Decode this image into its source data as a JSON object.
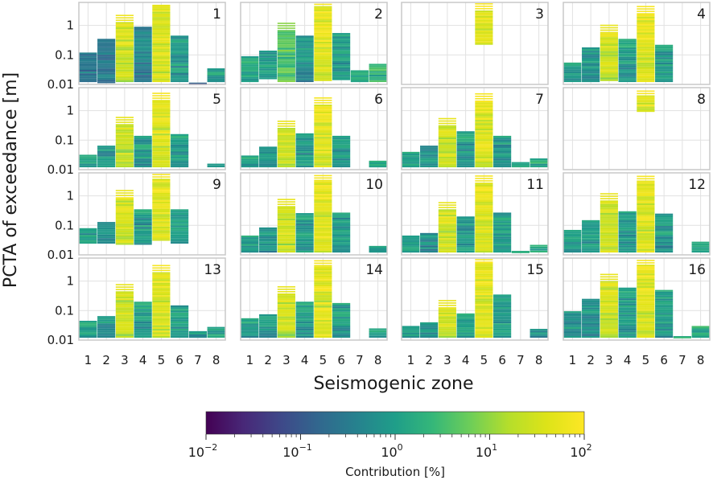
{
  "chart_data": {
    "type": "bar",
    "title": "",
    "ylabel": "PCTA of exceedance [m]",
    "xlabel": "Seismogenic zone",
    "categories": [
      "1",
      "2",
      "3",
      "4",
      "5",
      "6",
      "7",
      "8"
    ],
    "y_scale": "log",
    "ylim": [
      0.01,
      6
    ],
    "y_ticks": [
      0.01,
      0.1,
      1
    ],
    "y_tick_labels": [
      "0.01",
      "0.1",
      "1"
    ],
    "grid": true,
    "panels": [
      {
        "id": "1",
        "label": "1",
        "zones": [
          [
            0.012,
            0.12
          ],
          [
            0.011,
            0.35
          ],
          [
            0.012,
            1.3
          ],
          [
            0.012,
            0.9
          ],
          [
            0.012,
            5.0
          ],
          [
            0.012,
            0.45
          ],
          [
            0.01,
            0.011
          ],
          [
            0.012,
            0.035
          ]
        ],
        "peaks": [
          0.6,
          0.6,
          75,
          0.8,
          80,
          2,
          0.3,
          3
        ]
      },
      {
        "id": "2",
        "label": "2",
        "zones": [
          [
            0.012,
            0.09
          ],
          [
            0.015,
            0.14
          ],
          [
            0.012,
            0.7
          ],
          [
            0.012,
            0.45
          ],
          [
            0.013,
            4.5
          ],
          [
            0.014,
            0.55
          ],
          [
            0.012,
            0.03
          ],
          [
            0.012,
            0.05
          ]
        ],
        "peaks": [
          3,
          2,
          10,
          1.5,
          95,
          2,
          3,
          5
        ]
      },
      {
        "id": "3",
        "label": "3",
        "zones": [
          null,
          null,
          null,
          null,
          [
            0.22,
            3.2
          ],
          null,
          null,
          null
        ],
        "peaks": [
          0,
          0,
          0,
          0,
          98,
          0,
          0,
          0
        ]
      },
      {
        "id": "4",
        "label": "4",
        "zones": [
          [
            0.012,
            0.055
          ],
          [
            0.012,
            0.18
          ],
          [
            0.013,
            0.6
          ],
          [
            0.012,
            0.35
          ],
          [
            0.012,
            2.6
          ],
          [
            0.012,
            0.22
          ],
          null,
          null
        ],
        "peaks": [
          2,
          1.5,
          60,
          2,
          90,
          2,
          0,
          0
        ]
      },
      {
        "id": "5",
        "label": "5",
        "zones": [
          [
            0.012,
            0.032
          ],
          [
            0.012,
            0.065
          ],
          [
            0.012,
            0.35
          ],
          [
            0.012,
            0.14
          ],
          [
            0.012,
            2.3
          ],
          [
            0.012,
            0.16
          ],
          null,
          [
            0.012,
            0.016
          ]
        ],
        "peaks": [
          2,
          1.5,
          60,
          2,
          90,
          2,
          0,
          2
        ]
      },
      {
        "id": "6",
        "label": "6",
        "zones": [
          [
            0.012,
            0.03
          ],
          [
            0.012,
            0.06
          ],
          [
            0.012,
            0.26
          ],
          [
            0.012,
            0.17
          ],
          [
            0.012,
            1.6
          ],
          [
            0.012,
            0.14
          ],
          null,
          [
            0.012,
            0.02
          ]
        ],
        "peaks": [
          2,
          1.5,
          60,
          2,
          90,
          2,
          0,
          2
        ]
      },
      {
        "id": "7",
        "label": "7",
        "zones": [
          [
            0.012,
            0.04
          ],
          [
            0.012,
            0.065
          ],
          [
            0.012,
            0.32
          ],
          [
            0.012,
            0.2
          ],
          [
            0.012,
            2.2
          ],
          [
            0.012,
            0.14
          ],
          [
            0.012,
            0.018
          ],
          [
            0.012,
            0.024
          ]
        ],
        "peaks": [
          2,
          1.5,
          60,
          2,
          90,
          2,
          3,
          3
        ]
      },
      {
        "id": "8",
        "label": "8",
        "zones": [
          null,
          null,
          null,
          null,
          [
            0.9,
            3.3
          ],
          null,
          null,
          null
        ],
        "peaks": [
          0,
          0,
          0,
          0,
          98,
          0,
          0,
          0
        ]
      },
      {
        "id": "9",
        "label": "9",
        "zones": [
          [
            0.024,
            0.08
          ],
          [
            0.024,
            0.13
          ],
          [
            0.022,
            0.9
          ],
          [
            0.022,
            0.35
          ],
          [
            0.03,
            3.8
          ],
          [
            0.024,
            0.35
          ],
          null,
          null
        ],
        "peaks": [
          2,
          1.5,
          60,
          2,
          90,
          2,
          0,
          0
        ]
      },
      {
        "id": "10",
        "label": "10",
        "zones": [
          [
            0.012,
            0.045
          ],
          [
            0.012,
            0.085
          ],
          [
            0.012,
            0.45
          ],
          [
            0.012,
            0.26
          ],
          [
            0.012,
            3.5
          ],
          [
            0.012,
            0.27
          ],
          null,
          [
            0.012,
            0.02
          ]
        ],
        "peaks": [
          2,
          1.5,
          60,
          2,
          90,
          2,
          0,
          2
        ]
      },
      {
        "id": "11",
        "label": "11",
        "zones": [
          [
            0.012,
            0.045
          ],
          [
            0.012,
            0.055
          ],
          [
            0.012,
            0.35
          ],
          [
            0.012,
            0.2
          ],
          [
            0.012,
            2.8
          ],
          [
            0.012,
            0.27
          ],
          [
            0.012,
            0.013
          ],
          [
            0.012,
            0.022
          ]
        ],
        "peaks": [
          2,
          1.5,
          60,
          2,
          90,
          2,
          3,
          3
        ]
      },
      {
        "id": "12",
        "label": "12",
        "zones": [
          [
            0.012,
            0.07
          ],
          [
            0.012,
            0.15
          ],
          [
            0.012,
            0.7
          ],
          [
            0.012,
            0.3
          ],
          [
            0.012,
            3.3
          ],
          [
            0.012,
            0.25
          ],
          null,
          [
            0.012,
            0.028
          ]
        ],
        "peaks": [
          2,
          1.5,
          60,
          2,
          90,
          2,
          0,
          2
        ]
      },
      {
        "id": "13",
        "label": "13",
        "zones": [
          [
            0.012,
            0.045
          ],
          [
            0.012,
            0.065
          ],
          [
            0.012,
            0.45
          ],
          [
            0.012,
            0.2
          ],
          [
            0.012,
            2.0
          ],
          [
            0.012,
            0.15
          ],
          [
            0.012,
            0.02
          ],
          [
            0.012,
            0.028
          ]
        ],
        "peaks": [
          2,
          1.5,
          60,
          2,
          90,
          2,
          2,
          2
        ]
      },
      {
        "id": "14",
        "label": "14",
        "zones": [
          [
            0.012,
            0.055
          ],
          [
            0.012,
            0.075
          ],
          [
            0.012,
            0.38
          ],
          [
            0.012,
            0.2
          ],
          [
            0.012,
            3.5
          ],
          [
            0.012,
            0.18
          ],
          null,
          [
            0.012,
            0.025
          ]
        ],
        "peaks": [
          2,
          1.5,
          60,
          2,
          90,
          2,
          0,
          2
        ]
      },
      {
        "id": "15",
        "label": "15",
        "zones": [
          [
            0.012,
            0.03
          ],
          [
            0.012,
            0.04
          ],
          [
            0.012,
            0.13
          ],
          [
            0.012,
            0.08
          ],
          [
            0.012,
            4.6
          ],
          [
            0.012,
            0.35
          ],
          null,
          [
            0.012,
            0.024
          ]
        ],
        "peaks": [
          2,
          1.5,
          60,
          2,
          90,
          2,
          0,
          2
        ]
      },
      {
        "id": "16",
        "label": "16",
        "zones": [
          [
            0.012,
            0.095
          ],
          [
            0.012,
            0.25
          ],
          [
            0.012,
            1.0
          ],
          [
            0.012,
            0.6
          ],
          [
            0.012,
            3.6
          ],
          [
            0.012,
            0.5
          ],
          [
            0.012,
            0.013
          ],
          [
            0.012,
            0.03
          ]
        ],
        "peaks": [
          2,
          1.5,
          60,
          2,
          90,
          2,
          3,
          3
        ]
      }
    ],
    "colorbar": {
      "label": "Contribution [%]",
      "scale": "log",
      "range": [
        0.01,
        100
      ],
      "colormap": "viridis",
      "tick_labels": [
        {
          "base": "10",
          "exp": "−2"
        },
        {
          "base": "10",
          "exp": "−1"
        },
        {
          "base": "10",
          "exp": "0"
        },
        {
          "base": "10",
          "exp": "1"
        },
        {
          "base": "10",
          "exp": "2"
        }
      ]
    }
  },
  "colors": {
    "grid": "#e1e1e1",
    "frame": "#c8c8c8",
    "text": "#1a1a1a"
  }
}
